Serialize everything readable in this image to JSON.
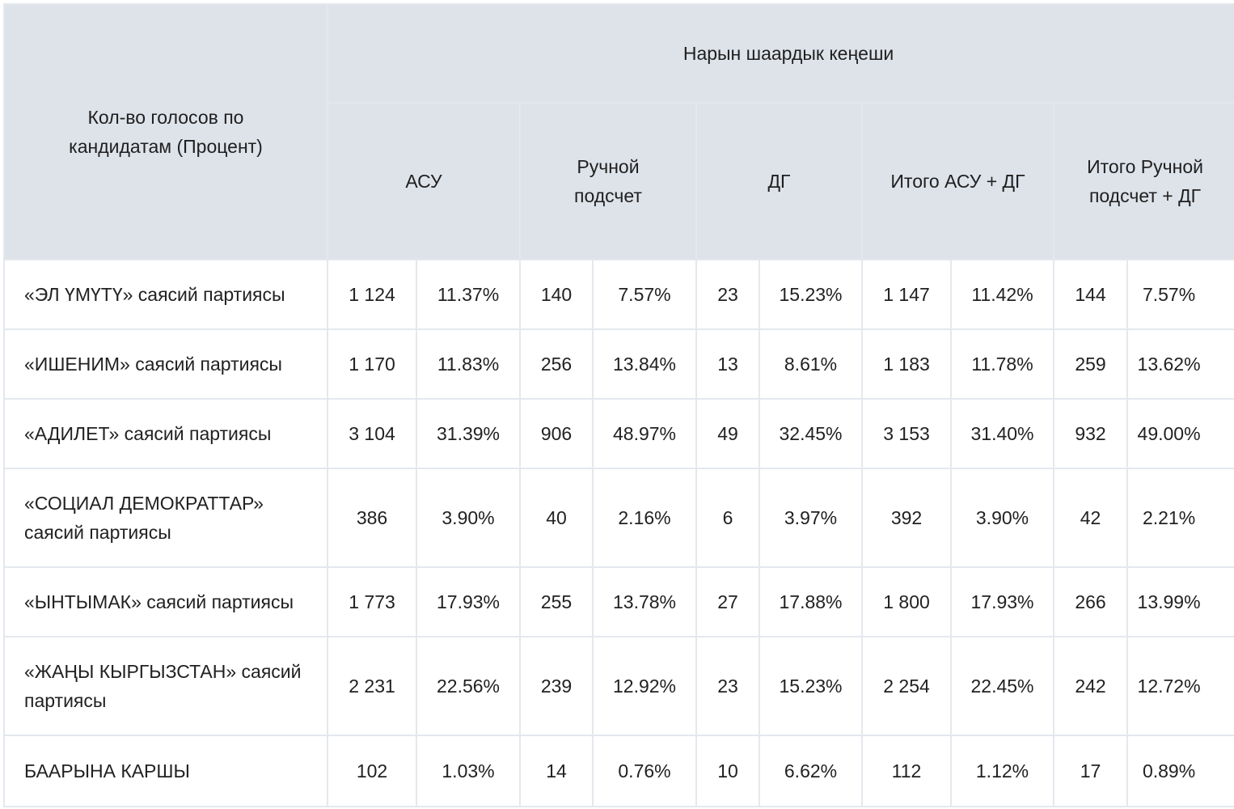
{
  "table": {
    "corner_header": "Кол-во голосов по кандидатам (Процент)",
    "council_header": "Нарын шаардык кеңеши",
    "group_headers": [
      "АСУ",
      "Ручной подсчет",
      "ДГ",
      "Итого АСУ + ДГ",
      "Итого Ручной подсчет + ДГ"
    ],
    "rows": [
      {
        "candidate": "«ЭЛ ҮМҮТҮ» саясий партиясы",
        "values": [
          "1 124",
          "11.37%",
          "140",
          "7.57%",
          "23",
          "15.23%",
          "1 147",
          "11.42%",
          "144",
          "7.57%"
        ]
      },
      {
        "candidate": "«ИШЕНИМ» саясий партиясы",
        "values": [
          "1 170",
          "11.83%",
          "256",
          "13.84%",
          "13",
          "8.61%",
          "1 183",
          "11.78%",
          "259",
          "13.62%"
        ]
      },
      {
        "candidate": "«АДИЛЕТ» саясий партиясы",
        "values": [
          "3 104",
          "31.39%",
          "906",
          "48.97%",
          "49",
          "32.45%",
          "3 153",
          "31.40%",
          "932",
          "49.00%"
        ]
      },
      {
        "candidate": "«СОЦИАЛ ДЕМОКРАТТАР» саясий партиясы",
        "values": [
          "386",
          "3.90%",
          "40",
          "2.16%",
          "6",
          "3.97%",
          "392",
          "3.90%",
          "42",
          "2.21%"
        ]
      },
      {
        "candidate": "«ЫНТЫМАК» саясий партиясы",
        "values": [
          "1 773",
          "17.93%",
          "255",
          "13.78%",
          "27",
          "17.88%",
          "1 800",
          "17.93%",
          "266",
          "13.99%"
        ]
      },
      {
        "candidate": "«ЖАҢЫ КЫРГЫЗСТАН» саясий партиясы",
        "values": [
          "2 231",
          "22.56%",
          "239",
          "12.92%",
          "23",
          "15.23%",
          "2 254",
          "22.45%",
          "242",
          "12.72%"
        ]
      },
      {
        "candidate": "БААРЫНА КАРШЫ",
        "values": [
          "102",
          "1.03%",
          "14",
          "0.76%",
          "10",
          "6.62%",
          "112",
          "1.12%",
          "17",
          "0.89%"
        ]
      }
    ]
  }
}
